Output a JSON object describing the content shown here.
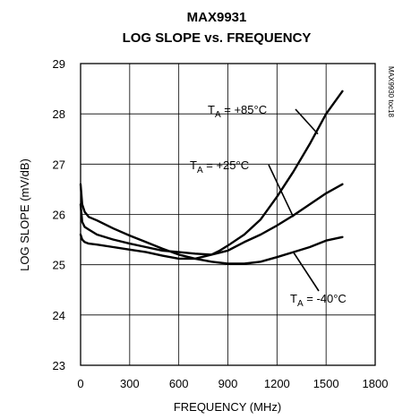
{
  "chart_data": {
    "type": "line",
    "title": "MAX9931",
    "subtitle": "LOG SLOPE vs. FREQUENCY",
    "xlabel": "FREQUENCY (MHz)",
    "ylabel": "LOG SLOPE (mV/dB)",
    "xlim": [
      0,
      1800
    ],
    "ylim": [
      23,
      29
    ],
    "xticks": [
      "0",
      "300",
      "600",
      "900",
      "1200",
      "1500",
      "1800"
    ],
    "yticks": [
      "23",
      "24",
      "25",
      "26",
      "27",
      "28",
      "29"
    ],
    "grid": true,
    "watermark": "MAX9930 toc18",
    "series": [
      {
        "name": "TA = +85°C",
        "label_main": "T",
        "label_sub": "A",
        "label_rest": " = +85°C",
        "x": [
          0,
          10,
          25,
          50,
          100,
          200,
          300,
          400,
          500,
          600,
          700,
          800,
          850,
          900,
          1000,
          1100,
          1200,
          1300,
          1400,
          1500,
          1600
        ],
        "y": [
          25.6,
          25.5,
          25.45,
          25.42,
          25.4,
          25.35,
          25.3,
          25.25,
          25.18,
          25.12,
          25.12,
          25.2,
          25.28,
          25.38,
          25.6,
          25.9,
          26.35,
          26.85,
          27.4,
          28.0,
          28.45
        ]
      },
      {
        "name": "TA = +25°C",
        "label_main": "T",
        "label_sub": "A",
        "label_rest": " = +25°C",
        "x": [
          0,
          10,
          25,
          50,
          100,
          200,
          300,
          400,
          500,
          600,
          700,
          800,
          900,
          1000,
          1100,
          1200,
          1300,
          1400,
          1500,
          1600
        ],
        "y": [
          26.2,
          25.85,
          25.75,
          25.7,
          25.6,
          25.5,
          25.42,
          25.35,
          25.28,
          25.25,
          25.22,
          25.2,
          25.28,
          25.45,
          25.6,
          25.78,
          25.98,
          26.2,
          26.42,
          26.6
        ]
      },
      {
        "name": "TA = -40°C",
        "label_main": "T",
        "label_sub": "A",
        "label_rest": " = -40°C",
        "x": [
          0,
          10,
          25,
          50,
          100,
          200,
          300,
          400,
          500,
          600,
          700,
          800,
          900,
          1000,
          1100,
          1200,
          1300,
          1400,
          1500,
          1600
        ],
        "y": [
          26.6,
          26.2,
          26.05,
          25.95,
          25.88,
          25.72,
          25.58,
          25.45,
          25.32,
          25.2,
          25.12,
          25.06,
          25.02,
          25.02,
          25.06,
          25.15,
          25.25,
          25.35,
          25.48,
          25.55
        ]
      }
    ]
  }
}
